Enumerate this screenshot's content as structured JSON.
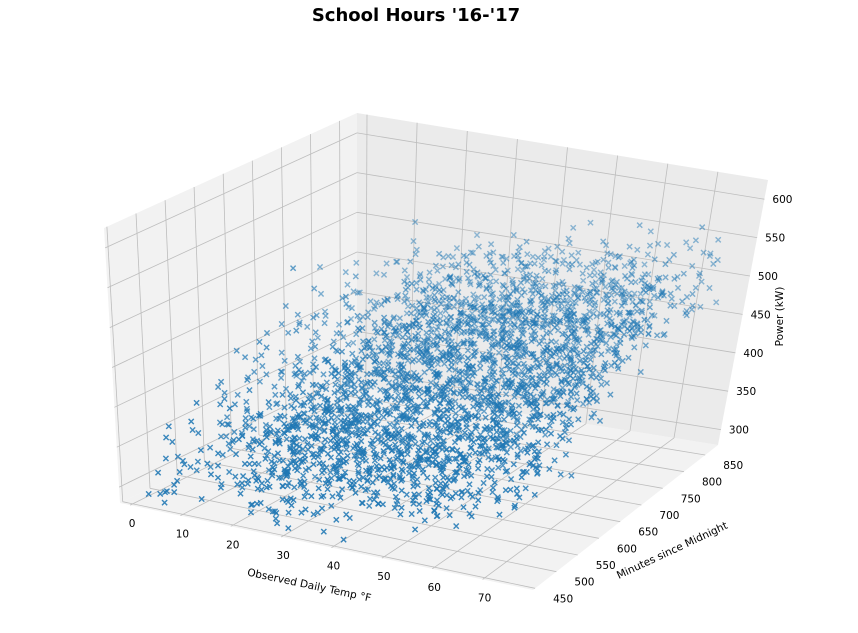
{
  "chart_data": {
    "type": "scatter3d",
    "title": "School Hours '16-'17",
    "marker": "x",
    "color": "#1f77b4",
    "xlabel": "Observed Daily Temp °F",
    "ylabel": "Minutes since Midnight",
    "zlabel": "Power (kW)",
    "xlim": [
      -2,
      80
    ],
    "ylim": [
      445,
      880
    ],
    "zlim": [
      280,
      625
    ],
    "xticks": [
      0,
      10,
      20,
      30,
      40,
      50,
      60,
      70
    ],
    "yticks": [
      450,
      500,
      550,
      600,
      650,
      700,
      750,
      800,
      850
    ],
    "zticks": [
      300,
      350,
      400,
      450,
      500,
      550,
      600
    ],
    "grid": true,
    "point_count_estimate": 3000,
    "trend": {
      "description": "Power rises with temperature and rises from morning toward mid-day; highest values at warm temps late in the school day",
      "min_power_approx": 290,
      "max_power_approx": 600
    }
  }
}
